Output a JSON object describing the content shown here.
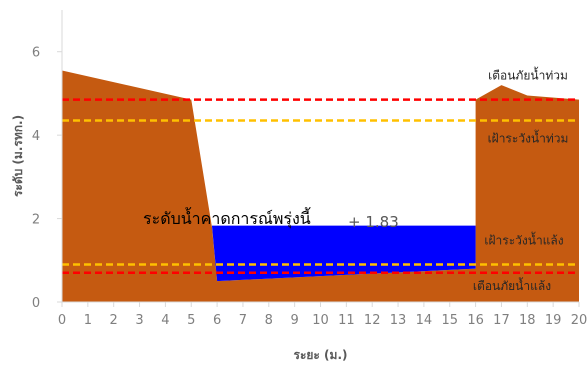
{
  "chart_data": {
    "type": "area",
    "xlabel": "ระยะ (ม.)",
    "ylabel": "ระดับ (ม.รทก.)",
    "xlim": [
      0,
      20
    ],
    "ylim": [
      0,
      7
    ],
    "xticks": [
      0,
      1,
      2,
      3,
      4,
      5,
      6,
      7,
      8,
      9,
      10,
      11,
      12,
      13,
      14,
      15,
      16,
      17,
      18,
      19,
      20
    ],
    "yticks": [
      0,
      2,
      4,
      6
    ],
    "grid": false,
    "series": [
      {
        "name": "",
        "kind": "ground-section",
        "color": "#C55A11",
        "x": [
          0,
          5,
          5.8,
          6,
          16,
          16,
          17,
          18,
          20
        ],
        "y": [
          5.55,
          4.85,
          1.8,
          0.5,
          0.8,
          4.85,
          5.2,
          4.95,
          4.85
        ]
      },
      {
        "name": "",
        "kind": "water",
        "color": "#0000FF",
        "level": 1.83,
        "x": [
          5.8,
          16
        ],
        "ground_bottom": [
          [
            6,
            0.5
          ],
          [
            16,
            0.8
          ]
        ]
      }
    ],
    "reference_lines": [
      {
        "label": "เตือนภัยน้ำท่วม",
        "y": 4.85,
        "color": "#FF0000"
      },
      {
        "label": "เฝ้าระวังน้ำท่วม",
        "y": 4.35,
        "color": "#FFC000"
      },
      {
        "label": "เฝ้าระวังน้ำแล้ง",
        "y": 0.9,
        "color": "#FFC000"
      },
      {
        "label": "เตือนภัยน้ำแล้ง",
        "y": 0.7,
        "color": "#FF0000"
      }
    ],
    "forecast": {
      "label": "ระดับน้ำคาดการณ์พรุ่งนี้",
      "value_text": "+ 1.83"
    }
  }
}
